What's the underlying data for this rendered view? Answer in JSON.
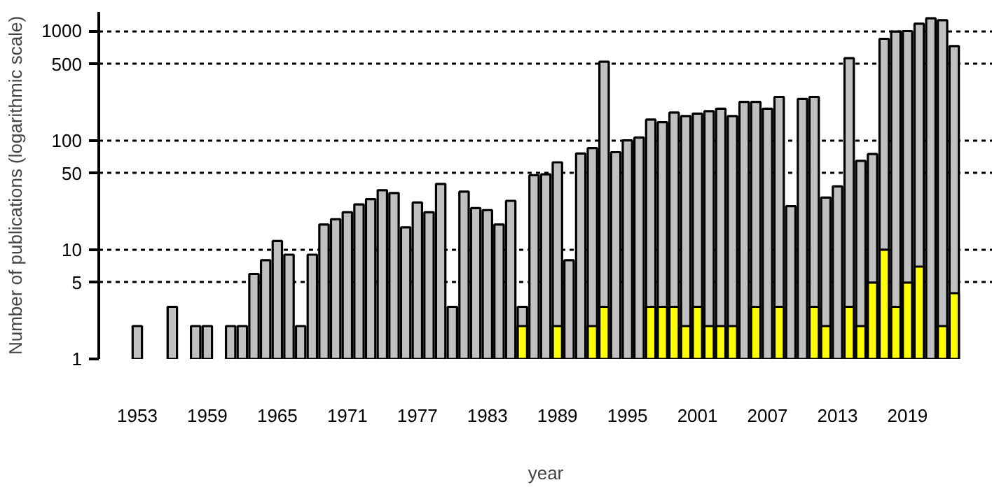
{
  "chart_data": {
    "type": "bar",
    "xlabel": "year",
    "ylabel": "Number of publications (logarithmic scale)",
    "x": [
      1953,
      1954,
      1955,
      1956,
      1957,
      1958,
      1959,
      1960,
      1961,
      1962,
      1963,
      1964,
      1965,
      1966,
      1967,
      1968,
      1969,
      1970,
      1971,
      1972,
      1973,
      1974,
      1975,
      1976,
      1977,
      1978,
      1979,
      1980,
      1981,
      1982,
      1983,
      1984,
      1985,
      1986,
      1987,
      1988,
      1989,
      1990,
      1991,
      1992,
      1993,
      1994,
      1995,
      1996,
      1997,
      1998,
      1999,
      2000,
      2001,
      2002,
      2003,
      2004,
      2005,
      2006,
      2007,
      2008,
      2009,
      2010,
      2011,
      2012,
      2013,
      2014,
      2015,
      2016,
      2017,
      2018,
      2019,
      2020,
      2021,
      2022,
      2023
    ],
    "series": [
      {
        "color": "#c0c0c0",
        "values": [
          2,
          null,
          null,
          3,
          null,
          2,
          2,
          null,
          2,
          2,
          6,
          8,
          12,
          9,
          2,
          9,
          17,
          19,
          22,
          26,
          29,
          35,
          33,
          16,
          27,
          22,
          40,
          3,
          34,
          24,
          23,
          17,
          28,
          3,
          48,
          49,
          63,
          8,
          76,
          85,
          525,
          78,
          100,
          106,
          155,
          147,
          180,
          167,
          176,
          185,
          195,
          167,
          225,
          225,
          195,
          250,
          25,
          240,
          250,
          30,
          38,
          565,
          65,
          75,
          850,
          990,
          1000,
          1170,
          1310,
          1260,
          730
        ]
      },
      {
        "color": "#ffff00",
        "values": [
          null,
          null,
          null,
          null,
          null,
          null,
          null,
          null,
          null,
          null,
          null,
          null,
          null,
          null,
          null,
          null,
          null,
          null,
          null,
          null,
          null,
          null,
          null,
          null,
          null,
          null,
          null,
          null,
          null,
          null,
          null,
          null,
          null,
          2,
          null,
          null,
          2,
          null,
          null,
          2,
          3,
          null,
          null,
          null,
          3,
          3,
          3,
          2,
          3,
          2,
          2,
          2,
          null,
          3,
          null,
          3,
          null,
          null,
          3,
          2,
          null,
          3,
          2,
          5,
          10,
          3,
          5,
          7,
          null,
          2,
          4
        ]
      }
    ],
    "log": "y",
    "ylim": [
      1,
      1500
    ],
    "yticks": [
      1,
      5,
      10,
      50,
      100,
      500,
      1000
    ],
    "xlim": [
      1949.7,
      2026.3
    ],
    "xticks": [
      1953,
      1959,
      1965,
      1971,
      1977,
      1983,
      1989,
      1995,
      2001,
      2007,
      2013,
      2019
    ],
    "grid": "y"
  }
}
